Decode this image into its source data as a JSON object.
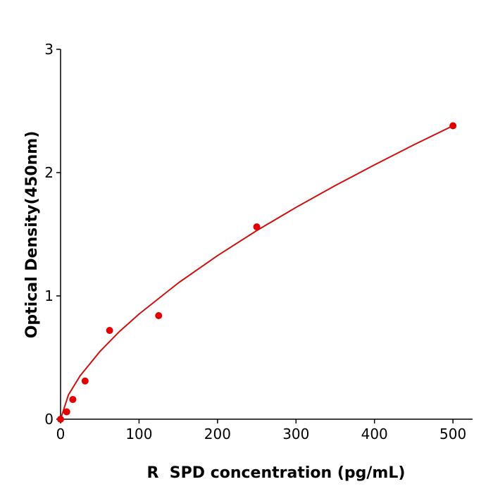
{
  "chart_data": {
    "type": "scatter",
    "x_label": "R  SPD concentration (pg/mL)",
    "y_label": "Optical Density(450nm)",
    "points": {
      "color": "#e00000",
      "x": [
        0,
        7.8,
        15.6,
        31.25,
        62.5,
        125,
        250,
        500
      ],
      "values": [
        0.0,
        0.06,
        0.16,
        0.31,
        0.72,
        0.84,
        1.56,
        2.38
      ]
    },
    "fit": {
      "color": "#d01010",
      "x": [
        0,
        10,
        25,
        50,
        75,
        100,
        150,
        200,
        250,
        300,
        350,
        400,
        450,
        500
      ],
      "values": [
        0,
        0.197,
        0.353,
        0.548,
        0.711,
        0.853,
        1.105,
        1.327,
        1.53,
        1.718,
        1.895,
        2.063,
        2.225,
        2.38
      ]
    },
    "xlim": [
      0,
      525
    ],
    "ylim": [
      0,
      3
    ],
    "xticks": [
      0,
      100,
      200,
      300,
      400,
      500
    ],
    "yticks": [
      0,
      1,
      2,
      3
    ],
    "grid": false
  }
}
